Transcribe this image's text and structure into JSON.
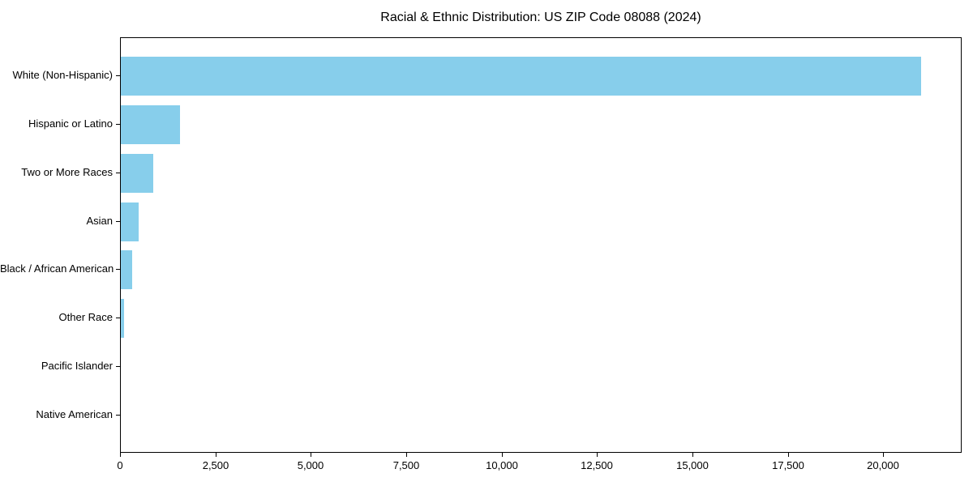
{
  "chart_data": {
    "type": "bar",
    "orientation": "horizontal",
    "title": "Racial & Ethnic Distribution: US ZIP Code 08088 (2024)",
    "categories": [
      "White (Non-Hispanic)",
      "Hispanic or Latino",
      "Two or More Races",
      "Asian",
      "Black / African American",
      "Other Race",
      "Pacific Islander",
      "Native American"
    ],
    "values": [
      21000,
      1550,
      850,
      470,
      300,
      85,
      0,
      0
    ],
    "xlabel": "",
    "ylabel": "",
    "xlim": [
      0,
      22050
    ],
    "xticks": {
      "values": [
        0,
        2500,
        5000,
        7500,
        10000,
        12500,
        15000,
        17500,
        20000
      ],
      "labels": [
        "0",
        "2,500",
        "5,000",
        "7,500",
        "10,000",
        "12,500",
        "15,000",
        "17,500",
        "20,000"
      ]
    },
    "bar_color": "#87CEEB",
    "axis_color": "#000000",
    "grid": false,
    "legend": null
  }
}
